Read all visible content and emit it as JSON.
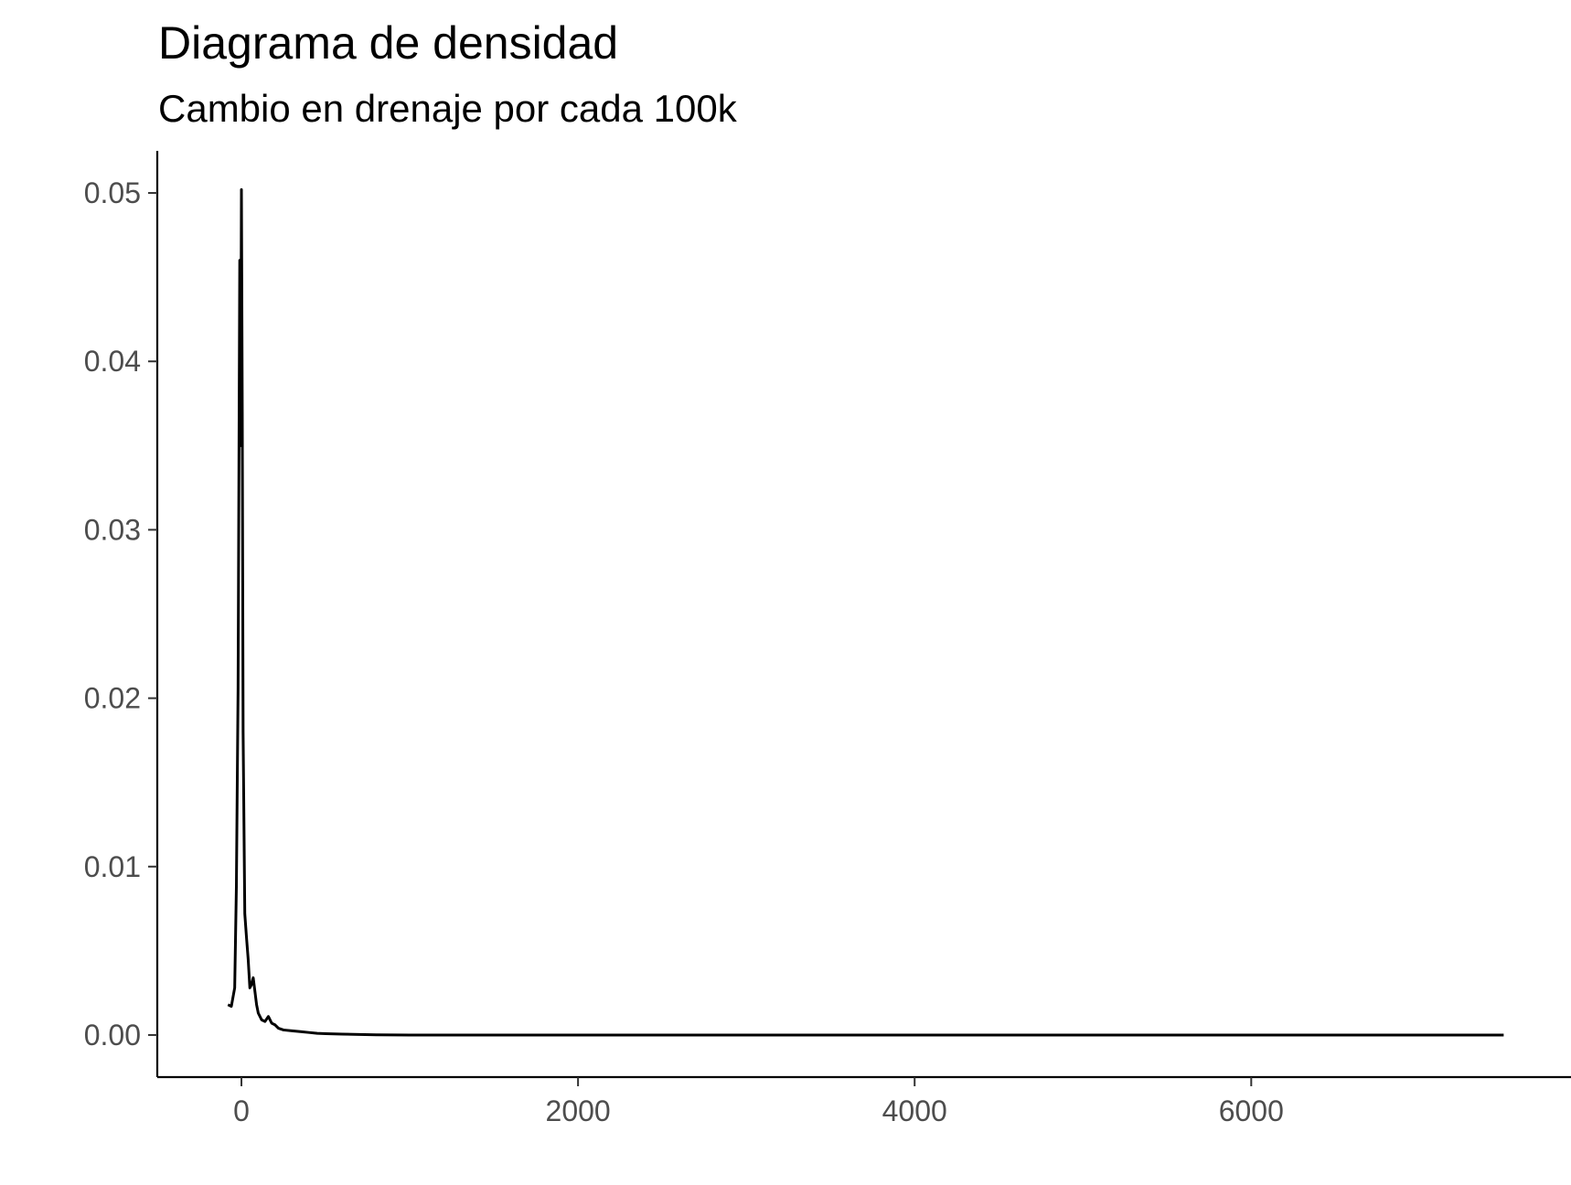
{
  "chart_data": {
    "type": "line",
    "title": "Diagrama de densidad",
    "subtitle": "Cambio en drenaje por cada 100k",
    "xlabel": "",
    "ylabel": "",
    "xlim": [
      -500,
      7900
    ],
    "ylim": [
      -0.0025,
      0.0525
    ],
    "x_ticks": [
      0,
      2000,
      4000,
      6000
    ],
    "x_tick_labels": [
      "0",
      "2000",
      "4000",
      "6000"
    ],
    "y_ticks": [
      0.0,
      0.01,
      0.02,
      0.03,
      0.04,
      0.05
    ],
    "y_tick_labels": [
      "0.00",
      "0.01",
      "0.02",
      "0.03",
      "0.04",
      "0.05"
    ],
    "grid": false,
    "line_color": "#000000",
    "series": [
      {
        "x": [
          -80,
          -60,
          -40,
          -30,
          -20,
          -10,
          -5,
          0,
          5,
          10,
          20,
          30,
          40,
          50,
          60,
          70,
          80,
          90,
          100,
          120,
          140,
          160,
          180,
          200,
          220,
          250,
          300,
          350,
          400,
          450,
          500,
          600,
          700,
          800,
          1000,
          1500,
          2000,
          3000,
          4000,
          5000,
          6000,
          7000,
          7500
        ],
        "y": [
          0.0018,
          0.0017,
          0.0028,
          0.0088,
          0.0205,
          0.046,
          0.035,
          0.0502,
          0.037,
          0.018,
          0.0072,
          0.0058,
          0.0045,
          0.0028,
          0.003,
          0.0034,
          0.0026,
          0.0018,
          0.0013,
          0.0009,
          0.0008,
          0.0011,
          0.0007,
          0.0006,
          0.0004,
          0.0003,
          0.00025,
          0.0002,
          0.00015,
          0.0001,
          8e-05,
          5e-05,
          3e-05,
          1e-05,
          0.0,
          0.0,
          0.0,
          0.0,
          0.0,
          0.0,
          0.0,
          0.0,
          0.0
        ]
      }
    ]
  }
}
